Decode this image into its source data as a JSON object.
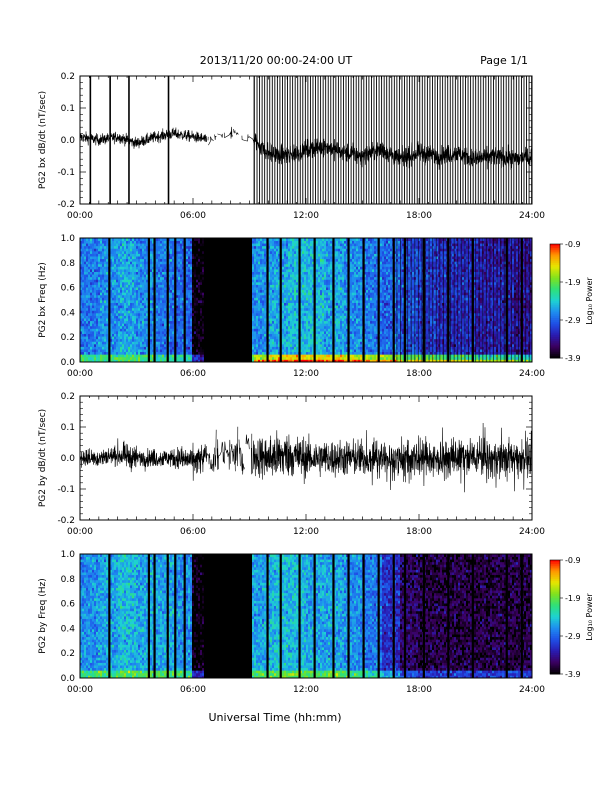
{
  "header": {
    "title": "2013/11/20  00:00-24:00 UT",
    "page": "Page 1/1"
  },
  "footer": {
    "xlabel": "Universal Time (hh:mm)"
  },
  "colors": {
    "colormap": [
      "#000000",
      "#3b0060",
      "#2a1bb0",
      "#1f4fe6",
      "#1e8cf0",
      "#1ed2d2",
      "#2ee07a",
      "#7fe21e",
      "#e6e600",
      "#ff9900",
      "#ff0000"
    ]
  },
  "chart_data": [
    {
      "type": "line",
      "panel": "PG2 bx dB/dt",
      "ylabel": "PG2 bx dB/dt (nT/sec)",
      "xlim": [
        0,
        24
      ],
      "ylim": [
        -0.2,
        0.2
      ],
      "xticks": [
        "00:00",
        "06:00",
        "12:00",
        "18:00",
        "24:00"
      ],
      "yticks": [
        "-0.2",
        "-0.1",
        "0.0",
        "0.1",
        "0.2"
      ],
      "series": [
        {
          "x": [
            0,
            1,
            2,
            3,
            4,
            5,
            6,
            7,
            8,
            9,
            10,
            11,
            12,
            13,
            14,
            15,
            16,
            17,
            18,
            19,
            20,
            21,
            22,
            23,
            24
          ],
          "values": [
            0.01,
            0.0,
            0.01,
            -0.01,
            0.01,
            0.02,
            0.01,
            0.0,
            0.02,
            0.01,
            -0.04,
            -0.05,
            -0.03,
            -0.02,
            -0.04,
            -0.05,
            -0.03,
            -0.06,
            -0.04,
            -0.05,
            -0.04,
            -0.06,
            -0.05,
            -0.06,
            -0.05
          ]
        }
      ],
      "spikes_at": [
        0.55,
        1.6,
        2.6,
        4.7
      ]
    },
    {
      "type": "heatmap",
      "panel": "PG2 bx Freq",
      "ylabel": "PG2 bx Freq (Hz)",
      "colorbar_label": "Log₁₀ Power",
      "xlim": [
        0,
        24
      ],
      "ylim": [
        0,
        1.0
      ],
      "xticks": [
        "00:00",
        "06:00",
        "12:00",
        "18:00",
        "24:00"
      ],
      "yticks": [
        "0.0",
        "0.2",
        "0.4",
        "0.6",
        "0.8",
        "1.0"
      ],
      "zlim": [
        -3.9,
        -0.9
      ],
      "zticks": [
        "-0.9",
        "-1.9",
        "-2.9",
        "-3.9"
      ],
      "gap": [
        6.6,
        9.1
      ],
      "hour_mean_level": [
        -2.8,
        -2.7,
        -2.6,
        -2.7,
        -2.8,
        -2.9,
        -3.9,
        -3.9,
        -3.9,
        -2.7,
        -2.6,
        -2.5,
        -2.5,
        -2.6,
        -2.7,
        -2.8,
        -2.9,
        -3.0,
        -3.1,
        -3.2,
        -3.2,
        -3.3,
        -3.3,
        -3.4
      ]
    },
    {
      "type": "line",
      "panel": "PG2 by dB/dt",
      "ylabel": "PG2 by dB/dt (nT/sec)",
      "xlim": [
        0,
        24
      ],
      "ylim": [
        -0.2,
        0.2
      ],
      "xticks": [
        "00:00",
        "06:00",
        "12:00",
        "18:00",
        "24:00"
      ],
      "yticks": [
        "-0.2",
        "-0.1",
        "0.0",
        "0.1",
        "0.2"
      ],
      "series": [
        {
          "x": [
            0,
            1,
            2,
            3,
            4,
            5,
            6,
            7,
            8,
            9,
            10,
            11,
            12,
            13,
            14,
            15,
            16,
            17,
            18,
            19,
            20,
            21,
            22,
            23,
            24
          ],
          "values": [
            0.0,
            0.0,
            0.01,
            0.0,
            0.0,
            0.0,
            -0.01,
            0.0,
            0.02,
            0.01,
            0.0,
            0.01,
            0.0,
            0.0,
            0.0,
            0.0,
            0.0,
            0.0,
            0.0,
            0.0,
            0.0,
            0.0,
            0.0,
            0.0,
            0.0
          ]
        }
      ],
      "amplitude_envelope": [
        0.03,
        0.03,
        0.04,
        0.03,
        0.03,
        0.04,
        0.05,
        0.06,
        0.08,
        0.07,
        0.08,
        0.07,
        0.06,
        0.06,
        0.06,
        0.05,
        0.05,
        0.05,
        0.05,
        0.05,
        0.05,
        0.05,
        0.05,
        0.05
      ]
    },
    {
      "type": "heatmap",
      "panel": "PG2 by Freq",
      "ylabel": "PG2 by Freq (Hz)",
      "colorbar_label": "Log₁₀ Power",
      "xlim": [
        0,
        24
      ],
      "ylim": [
        0,
        1.0
      ],
      "xticks": [
        "00:00",
        "06:00",
        "12:00",
        "18:00",
        "24:00"
      ],
      "yticks": [
        "0.0",
        "0.2",
        "0.4",
        "0.6",
        "0.8",
        "1.0"
      ],
      "zlim": [
        -3.9,
        -0.9
      ],
      "zticks": [
        "-0.9",
        "-1.9",
        "-2.9",
        "-3.9"
      ],
      "gap": [
        6.6,
        9.1
      ],
      "hour_mean_level": [
        -2.7,
        -2.6,
        -2.5,
        -2.6,
        -2.6,
        -2.7,
        -3.9,
        -3.9,
        -3.9,
        -2.6,
        -2.5,
        -2.5,
        -2.6,
        -2.6,
        -2.7,
        -2.8,
        -3.2,
        -3.6,
        -3.7,
        -3.7,
        -3.7,
        -3.7,
        -3.7,
        -3.7
      ]
    }
  ]
}
